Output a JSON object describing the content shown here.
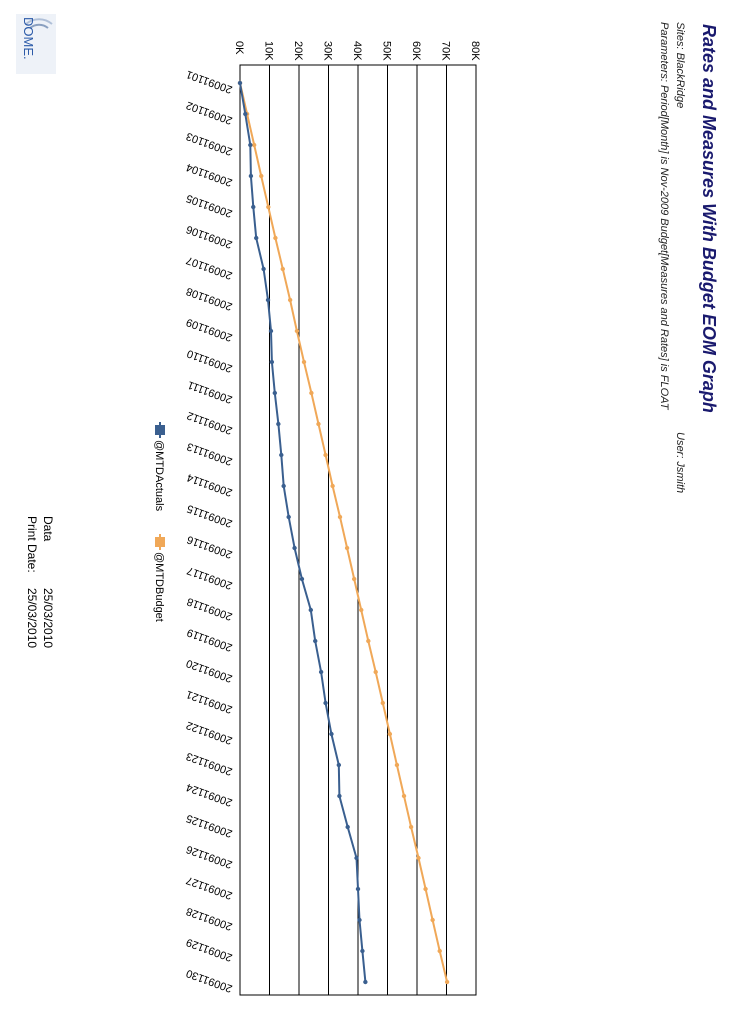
{
  "report": {
    "title": "Rates and Measures With Budget EOM Graph",
    "sites": "Sites: BlackRidge",
    "user": "User: Jsmith",
    "parameters": "Parameters: Period[Month] is Nov-2009 Budget[Measures and Rates] is FLOAT"
  },
  "footer": {
    "data_label": "Data",
    "data_date": "25/03/2010",
    "print_label": "Print Date:",
    "print_date": "25/03/2010"
  },
  "logo": {
    "text": "DOME."
  },
  "colors": {
    "actuals": "#3a5f8f",
    "budget": "#f0a858",
    "grid": "#000000"
  },
  "chart_data": {
    "type": "line",
    "categories": [
      "20091101",
      "20091102",
      "20091103",
      "20091104",
      "20091105",
      "20091106",
      "20091107",
      "20091108",
      "20091109",
      "20091110",
      "20091111",
      "20091112",
      "20091113",
      "20091114",
      "20091115",
      "20091116",
      "20091117",
      "20091118",
      "20091119",
      "20091120",
      "20091121",
      "20091122",
      "20091123",
      "20091124",
      "20091125",
      "20091126",
      "20091127",
      "20091128",
      "20091129",
      "20091130"
    ],
    "y_ticks": [
      "0K",
      "10K",
      "20K",
      "30K",
      "40K",
      "50K",
      "60K",
      "70K",
      "80K"
    ],
    "ylim": [
      0,
      80000
    ],
    "grid": true,
    "legend_placement": "bottom",
    "series": [
      {
        "name": "@MTDActuals",
        "values": [
          0,
          1800,
          3500,
          3700,
          4500,
          5500,
          8000,
          9500,
          10500,
          10800,
          11800,
          13000,
          14000,
          14800,
          16500,
          18500,
          21000,
          24000,
          25500,
          27500,
          29000,
          31000,
          33500,
          33700,
          36500,
          39500,
          40000,
          40500,
          41500,
          42500
        ]
      },
      {
        "name": "@MTDBudget",
        "values": [
          0,
          2400,
          4800,
          7200,
          9600,
          12000,
          14500,
          17000,
          19300,
          21700,
          24200,
          26600,
          29000,
          31400,
          33900,
          36300,
          38700,
          41100,
          43500,
          46000,
          48400,
          50800,
          53200,
          55600,
          58000,
          60500,
          62900,
          65300,
          67700,
          70200
        ]
      }
    ]
  }
}
